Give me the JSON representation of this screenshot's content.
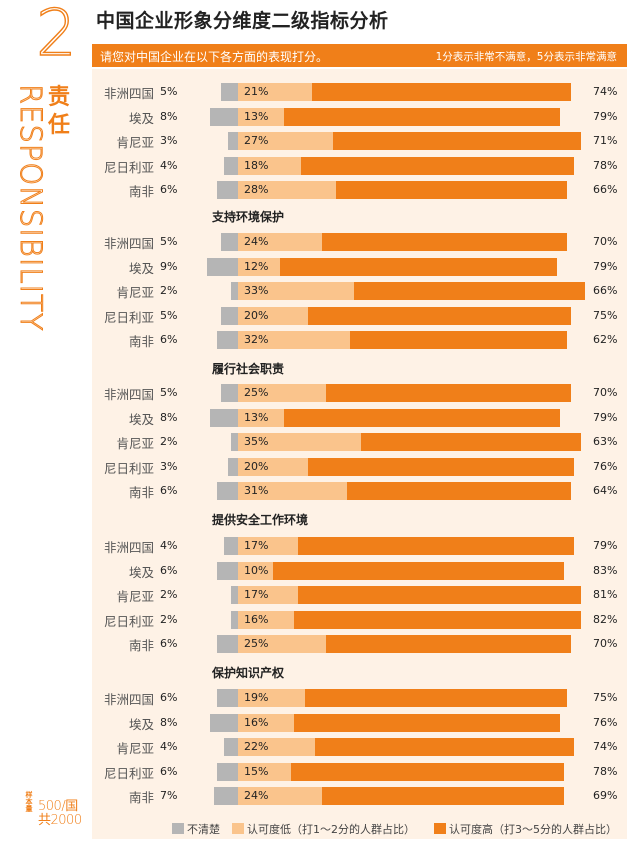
{
  "header": {
    "number": "2",
    "title": "中国企业形象分维度二级指标分析",
    "ribbon_left": "请您对中国企业在以下各方面的表现打分。",
    "ribbon_right": "1分表示非常不满意，5分表示非常满意"
  },
  "side": {
    "cn": "责任",
    "en": "RESPONSIBILITY"
  },
  "sample": {
    "label": "样本量",
    "top": "500/国",
    "bottom": "共2000"
  },
  "colors": {
    "unclear": "#b5b5b5",
    "low": "#fac48c",
    "high": "#f07f19",
    "accent": "#f07f19"
  },
  "chart_data": {
    "type": "bar",
    "stacked": true,
    "orientation": "horizontal",
    "title": "中国企业形象分维度二级指标分析",
    "legend": [
      "不清楚",
      "认可度低（打1～2分的人群占比）",
      "认可度高（打3～5分的人群占比）"
    ],
    "groups": [
      {
        "title": "",
        "rows": [
          {
            "country": "非洲四国",
            "unclear": 5,
            "low": 21,
            "high": 74
          },
          {
            "country": "埃及",
            "unclear": 8,
            "low": 13,
            "high": 79
          },
          {
            "country": "肯尼亚",
            "unclear": 3,
            "low": 27,
            "high": 71
          },
          {
            "country": "尼日利亚",
            "unclear": 4,
            "low": 18,
            "high": 78
          },
          {
            "country": "南非",
            "unclear": 6,
            "low": 28,
            "high": 66
          }
        ]
      },
      {
        "title": "支持环境保护",
        "rows": [
          {
            "country": "非洲四国",
            "unclear": 5,
            "low": 24,
            "high": 70
          },
          {
            "country": "埃及",
            "unclear": 9,
            "low": 12,
            "high": 79
          },
          {
            "country": "肯尼亚",
            "unclear": 2,
            "low": 33,
            "high": 66
          },
          {
            "country": "尼日利亚",
            "unclear": 5,
            "low": 20,
            "high": 75
          },
          {
            "country": "南非",
            "unclear": 6,
            "low": 32,
            "high": 62
          }
        ]
      },
      {
        "title": "履行社会职责",
        "rows": [
          {
            "country": "非洲四国",
            "unclear": 5,
            "low": 25,
            "high": 70
          },
          {
            "country": "埃及",
            "unclear": 8,
            "low": 13,
            "high": 79
          },
          {
            "country": "肯尼亚",
            "unclear": 2,
            "low": 35,
            "high": 63
          },
          {
            "country": "尼日利亚",
            "unclear": 3,
            "low": 20,
            "high": 76
          },
          {
            "country": "南非",
            "unclear": 6,
            "low": 31,
            "high": 64
          }
        ]
      },
      {
        "title": "提供安全工作环境",
        "rows": [
          {
            "country": "非洲四国",
            "unclear": 4,
            "low": 17,
            "high": 79
          },
          {
            "country": "埃及",
            "unclear": 6,
            "low": 10,
            "high": 83
          },
          {
            "country": "肯尼亚",
            "unclear": 2,
            "low": 17,
            "high": 81
          },
          {
            "country": "尼日利亚",
            "unclear": 2,
            "low": 16,
            "high": 82
          },
          {
            "country": "南非",
            "unclear": 6,
            "low": 25,
            "high": 70
          }
        ]
      },
      {
        "title": "保护知识产权",
        "rows": [
          {
            "country": "非洲四国",
            "unclear": 6,
            "low": 19,
            "high": 75
          },
          {
            "country": "埃及",
            "unclear": 8,
            "low": 16,
            "high": 76
          },
          {
            "country": "肯尼亚",
            "unclear": 4,
            "low": 22,
            "high": 74
          },
          {
            "country": "尼日利亚",
            "unclear": 6,
            "low": 15,
            "high": 78
          },
          {
            "country": "南非",
            "unclear": 7,
            "low": 24,
            "high": 69
          }
        ]
      }
    ]
  }
}
